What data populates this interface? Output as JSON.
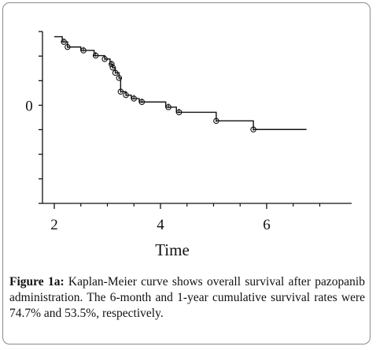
{
  "chart_data": {
    "type": "line",
    "title": "",
    "xlabel": "Time",
    "ylabel": "",
    "xlim": [
      1.8,
      7.1
    ],
    "ylim": [
      0,
      1
    ],
    "x_ticks": [
      2,
      4,
      6
    ],
    "x_tick_labels": [
      "2",
      "4",
      "6"
    ],
    "y_tick_label_text": "0",
    "y_label_value": 0.57,
    "y_ticks": [
      0,
      0.143,
      0.286,
      0.429,
      0.571,
      0.714,
      0.857,
      1
    ],
    "x_minor_ticks": [
      2.5,
      3,
      3.5,
      4.5,
      5,
      5.5,
      6.5,
      7
    ],
    "grid": false,
    "series": [
      {
        "steps": [
          [
            2.0,
            0.97
          ],
          [
            2.15,
            0.94
          ],
          [
            2.25,
            0.91
          ],
          [
            2.5,
            0.89
          ],
          [
            2.75,
            0.86
          ],
          [
            2.95,
            0.84
          ],
          [
            3.05,
            0.81
          ],
          [
            3.1,
            0.79
          ],
          [
            3.15,
            0.76
          ],
          [
            3.22,
            0.73
          ],
          [
            3.25,
            0.65
          ],
          [
            3.35,
            0.63
          ],
          [
            3.45,
            0.61
          ],
          [
            3.6,
            0.59
          ],
          [
            4.1,
            0.56
          ],
          [
            4.3,
            0.53
          ],
          [
            5.05,
            0.48
          ],
          [
            5.75,
            0.43
          ]
        ],
        "end_x": 6.75,
        "censored": [
          [
            2.18,
            0.94
          ],
          [
            2.25,
            0.91
          ],
          [
            2.55,
            0.89
          ],
          [
            2.78,
            0.86
          ],
          [
            2.95,
            0.84
          ],
          [
            3.08,
            0.81
          ],
          [
            3.1,
            0.79
          ],
          [
            3.15,
            0.76
          ],
          [
            3.22,
            0.73
          ],
          [
            3.25,
            0.65
          ],
          [
            3.35,
            0.63
          ],
          [
            3.5,
            0.61
          ],
          [
            3.65,
            0.59
          ],
          [
            4.15,
            0.56
          ],
          [
            4.35,
            0.53
          ],
          [
            5.05,
            0.48
          ],
          [
            5.75,
            0.43
          ]
        ]
      }
    ]
  },
  "caption": {
    "label": "Figure 1a:",
    "text": " Kaplan-Meier curve shows overall survival after pazopanib administration. The 6-month and 1-year cumulative survival rates were 74.7% and 53.5%, respectively."
  }
}
